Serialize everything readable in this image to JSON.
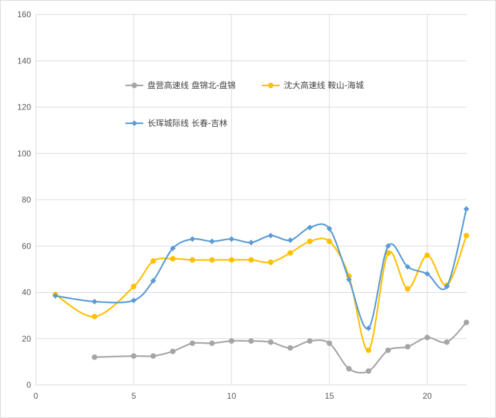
{
  "chart_data": {
    "type": "line",
    "title": "",
    "xlabel": "",
    "ylabel": "",
    "xlim": [
      0,
      22
    ],
    "ylim": [
      0,
      160
    ],
    "x_ticks": [
      "0",
      "5",
      "10",
      "15",
      "20"
    ],
    "y_ticks": [
      "0",
      "20",
      "40",
      "60",
      "80",
      "100",
      "120",
      "140",
      "160"
    ],
    "grid": "vertical-and-horizontal",
    "legend_position": "upper-left inside plot",
    "series": [
      {
        "name": "盘营高速线 盘锦北-盘锦",
        "color": "#a5a5a5",
        "marker": "circle",
        "points": [
          [
            3,
            12
          ],
          [
            5,
            12.5
          ],
          [
            6,
            12.5
          ],
          [
            7,
            14.5
          ],
          [
            8,
            18
          ],
          [
            9,
            18
          ],
          [
            10,
            19
          ],
          [
            11,
            19
          ],
          [
            12,
            18.5
          ],
          [
            13,
            16
          ],
          [
            14,
            19
          ],
          [
            15,
            18
          ],
          [
            16,
            7
          ],
          [
            17,
            6
          ],
          [
            18,
            15
          ],
          [
            19,
            16.5
          ],
          [
            20,
            20.5
          ],
          [
            21,
            18.5
          ],
          [
            22,
            27
          ]
        ]
      },
      {
        "name": "沈大高速线 鞍山-海城",
        "color": "#ffc000",
        "marker": "circle",
        "points": [
          [
            1,
            39
          ],
          [
            3,
            29.5
          ],
          [
            5,
            42.5
          ],
          [
            6,
            53.5
          ],
          [
            7,
            54.5
          ],
          [
            8,
            54
          ],
          [
            9,
            54
          ],
          [
            10,
            54
          ],
          [
            11,
            54
          ],
          [
            12,
            53
          ],
          [
            13,
            57
          ],
          [
            14,
            62
          ],
          [
            15,
            62
          ],
          [
            16,
            47
          ],
          [
            17,
            15
          ],
          [
            18,
            57
          ],
          [
            19,
            41.5
          ],
          [
            20,
            56
          ],
          [
            21,
            43
          ],
          [
            22,
            64.5
          ]
        ]
      },
      {
        "name": "长珲城际线 长春-吉林",
        "color": "#5b9bd5",
        "marker": "diamond",
        "points": [
          [
            1,
            38.5
          ],
          [
            3,
            36
          ],
          [
            5,
            36.5
          ],
          [
            6,
            45
          ],
          [
            7,
            59
          ],
          [
            8,
            63
          ],
          [
            9,
            62
          ],
          [
            10,
            63
          ],
          [
            11,
            61.5
          ],
          [
            12,
            64.5
          ],
          [
            13,
            62.5
          ],
          [
            14,
            68
          ],
          [
            15,
            67.5
          ],
          [
            16,
            45.5
          ],
          [
            17,
            24.5
          ],
          [
            18,
            60
          ],
          [
            19,
            51
          ],
          [
            20,
            48
          ],
          [
            21,
            42.5
          ],
          [
            22,
            76
          ]
        ]
      }
    ]
  }
}
